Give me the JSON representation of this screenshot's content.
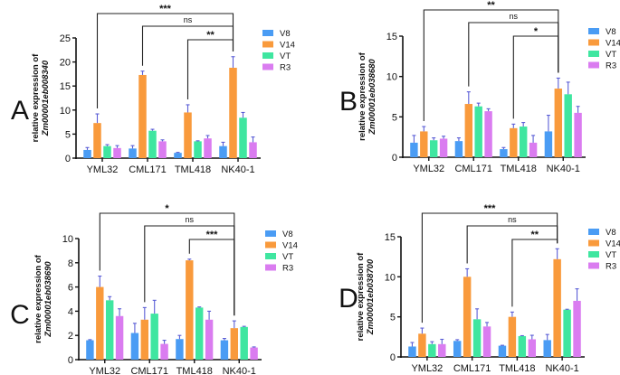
{
  "figure": {
    "panel_labels": [
      "A",
      "B",
      "C",
      "D"
    ]
  },
  "chart_data": [
    {
      "type": "bar",
      "panel": "A",
      "title": "",
      "xlabel": "",
      "ylabel": "relative expression of",
      "ylabel_gene": "Zm00001eb008340",
      "categories": [
        "YML32",
        "CML171",
        "TML418",
        "NK40-1"
      ],
      "ylim": [
        0,
        25
      ],
      "yticks": [
        0,
        5,
        10,
        15,
        20,
        25
      ],
      "legend": "right",
      "series": [
        {
          "name": "V8",
          "color": "#4a9cf4",
          "values": [
            1.7,
            2.0,
            1.1,
            2.5
          ],
          "errors": [
            0.5,
            0.6,
            0.1,
            0.8
          ]
        },
        {
          "name": "V14",
          "color": "#f99a3c",
          "values": [
            7.3,
            17.3,
            9.5,
            18.8
          ],
          "errors": [
            1.9,
            0.8,
            1.6,
            2.3
          ]
        },
        {
          "name": "VT",
          "color": "#3fe6a0",
          "values": [
            2.5,
            5.7,
            3.5,
            8.4
          ],
          "errors": [
            0.3,
            0.3,
            0.1,
            1.1
          ]
        },
        {
          "name": "R3",
          "color": "#da7cf0",
          "values": [
            2.1,
            3.5,
            4.1,
            3.3
          ],
          "errors": [
            0.5,
            0.3,
            0.6,
            1.1
          ]
        }
      ],
      "significance": [
        {
          "from": "YML32",
          "to": "NK40-1",
          "label": "***"
        },
        {
          "from": "CML171",
          "to": "NK40-1",
          "label": "ns"
        },
        {
          "from": "TML418",
          "to": "NK40-1",
          "label": "**"
        }
      ]
    },
    {
      "type": "bar",
      "panel": "B",
      "title": "",
      "xlabel": "",
      "ylabel": "relative expression of",
      "ylabel_gene": "Zm00001eb038680",
      "categories": [
        "YML32",
        "CML171",
        "TML418",
        "NK40-1"
      ],
      "ylim": [
        0,
        15
      ],
      "yticks": [
        0,
        5,
        10,
        15
      ],
      "legend": "right",
      "series": [
        {
          "name": "V8",
          "color": "#4a9cf4",
          "values": [
            1.8,
            2.0,
            1.0,
            3.2
          ],
          "errors": [
            0.9,
            0.4,
            0.2,
            2.0
          ]
        },
        {
          "name": "V14",
          "color": "#f99a3c",
          "values": [
            3.2,
            6.6,
            3.6,
            8.5
          ],
          "errors": [
            0.6,
            1.5,
            0.5,
            1.3
          ]
        },
        {
          "name": "VT",
          "color": "#3fe6a0",
          "values": [
            2.1,
            6.3,
            3.8,
            7.8
          ],
          "errors": [
            0.3,
            0.4,
            0.5,
            1.5
          ]
        },
        {
          "name": "R3",
          "color": "#da7cf0",
          "values": [
            2.3,
            5.7,
            1.8,
            5.5
          ],
          "errors": [
            0.3,
            0.3,
            0.9,
            0.8
          ]
        }
      ],
      "significance": [
        {
          "from": "YML32",
          "to": "NK40-1",
          "label": "**"
        },
        {
          "from": "CML171",
          "to": "NK40-1",
          "label": "ns"
        },
        {
          "from": "TML418",
          "to": "NK40-1",
          "label": "*"
        }
      ]
    },
    {
      "type": "bar",
      "panel": "C",
      "title": "",
      "xlabel": "",
      "ylabel": "relative expression of",
      "ylabel_gene": "Zm00001eb038690",
      "categories": [
        "YML32",
        "CML171",
        "TML418",
        "NK40-1"
      ],
      "ylim": [
        0,
        10
      ],
      "yticks": [
        0,
        2,
        4,
        6,
        8,
        10
      ],
      "legend": "right",
      "series": [
        {
          "name": "V8",
          "color": "#4a9cf4",
          "values": [
            1.6,
            2.2,
            1.7,
            1.6
          ],
          "errors": [
            0.05,
            0.8,
            0.3,
            0.15
          ]
        },
        {
          "name": "V14",
          "color": "#f99a3c",
          "values": [
            6.0,
            3.3,
            8.2,
            2.6
          ],
          "errors": [
            0.9,
            1.0,
            0.1,
            0.6
          ]
        },
        {
          "name": "VT",
          "color": "#3fe6a0",
          "values": [
            4.9,
            3.8,
            4.3,
            2.7
          ],
          "errors": [
            0.3,
            1.1,
            0.05,
            0.05
          ]
        },
        {
          "name": "R3",
          "color": "#da7cf0",
          "values": [
            3.6,
            1.3,
            3.3,
            1.0
          ],
          "errors": [
            0.6,
            0.3,
            0.7,
            0.05
          ]
        }
      ],
      "significance": [
        {
          "from": "YML32",
          "to": "NK40-1",
          "label": "*"
        },
        {
          "from": "CML171",
          "to": "NK40-1",
          "label": "ns"
        },
        {
          "from": "TML418",
          "to": "NK40-1",
          "label": "***"
        }
      ]
    },
    {
      "type": "bar",
      "panel": "D",
      "title": "",
      "xlabel": "",
      "ylabel": "relative expression of",
      "ylabel_gene": "Zm00001eb038700",
      "categories": [
        "YML32",
        "CML171",
        "TML418",
        "NK40-1"
      ],
      "ylim": [
        0,
        15
      ],
      "yticks": [
        0,
        5,
        10,
        15
      ],
      "legend": "right",
      "series": [
        {
          "name": "V8",
          "color": "#4a9cf4",
          "values": [
            1.3,
            2.0,
            1.4,
            2.1
          ],
          "errors": [
            0.5,
            0.15,
            0.05,
            0.7
          ]
        },
        {
          "name": "V14",
          "color": "#f99a3c",
          "values": [
            2.9,
            10.0,
            5.0,
            12.2
          ],
          "errors": [
            0.7,
            1.0,
            0.6,
            1.3
          ]
        },
        {
          "name": "VT",
          "color": "#3fe6a0",
          "values": [
            1.6,
            4.7,
            2.6,
            5.9
          ],
          "errors": [
            0.3,
            1.3,
            0.05,
            0.05
          ]
        },
        {
          "name": "R3",
          "color": "#da7cf0",
          "values": [
            1.6,
            3.8,
            2.2,
            7.0
          ],
          "errors": [
            0.6,
            0.5,
            0.5,
            1.5
          ]
        }
      ],
      "significance": [
        {
          "from": "YML32",
          "to": "NK40-1",
          "label": "***"
        },
        {
          "from": "CML171",
          "to": "NK40-1",
          "label": "ns"
        },
        {
          "from": "TML418",
          "to": "NK40-1",
          "label": "**"
        }
      ]
    }
  ]
}
